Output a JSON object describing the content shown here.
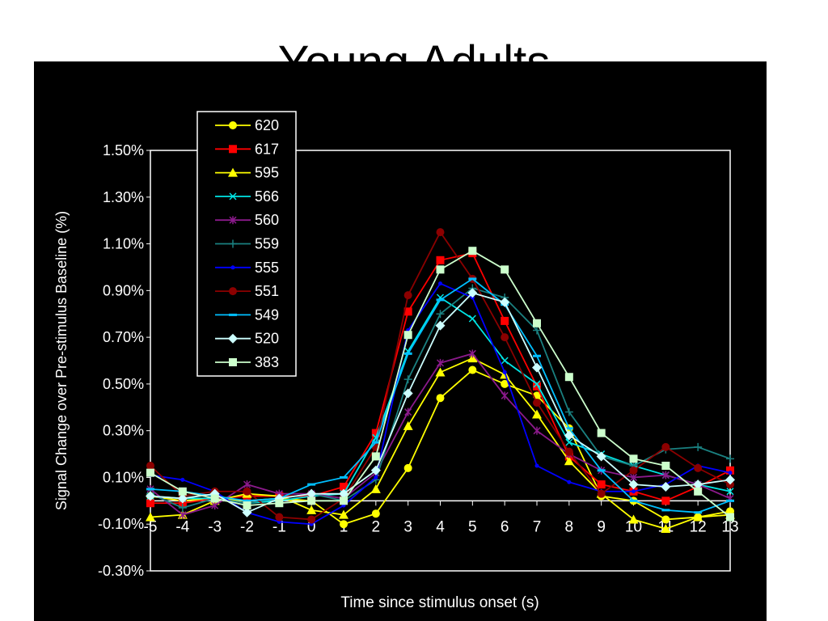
{
  "chart_data": {
    "type": "line",
    "title": "Young Adults",
    "xlabel": "Time since stimulus onset (s)",
    "ylabel": "Signal Change over Pre-stimulus Baseline (%)",
    "x": [
      -5,
      -4,
      -3,
      -2,
      -1,
      0,
      1,
      2,
      3,
      4,
      5,
      6,
      7,
      8,
      9,
      10,
      11,
      12,
      13
    ],
    "ylim": [
      -0.3,
      1.5
    ],
    "yticks": [
      "1.50%",
      "1.30%",
      "1.10%",
      "0.90%",
      "0.70%",
      "0.50%",
      "0.30%",
      "0.10%",
      "-0.10%",
      "-0.30%"
    ],
    "ytick_values": [
      1.5,
      1.3,
      1.1,
      0.9,
      0.7,
      0.5,
      0.3,
      0.1,
      -0.1,
      -0.3
    ],
    "legend_position": "top-left",
    "series": [
      {
        "name": "620",
        "color": "#ffff00",
        "marker": "circle",
        "values": [
          0.02,
          0.0,
          0.01,
          0.0,
          0.01,
          0.0,
          -0.1,
          -0.055,
          0.14,
          0.44,
          0.56,
          0.5,
          0.45,
          0.31,
          0.02,
          0.0,
          -0.08,
          -0.07,
          -0.045
        ]
      },
      {
        "name": "617",
        "color": "#ff0000",
        "marker": "square",
        "values": [
          -0.01,
          -0.01,
          0.01,
          0.02,
          0.02,
          0.02,
          0.06,
          0.29,
          0.81,
          1.03,
          1.06,
          0.77,
          0.49,
          0.19,
          0.07,
          0.04,
          0.0,
          0.06,
          0.13
        ]
      },
      {
        "name": "595",
        "color": "#ffff00",
        "marker": "triangle",
        "values": [
          -0.07,
          -0.06,
          0.0,
          0.03,
          0.02,
          -0.04,
          -0.06,
          0.05,
          0.32,
          0.55,
          0.61,
          0.54,
          0.37,
          0.17,
          0.03,
          -0.08,
          -0.12,
          -0.07,
          -0.06
        ]
      },
      {
        "name": "566",
        "color": "#00e5e5",
        "marker": "x",
        "values": [
          0.02,
          0.01,
          0.01,
          -0.01,
          0.0,
          0.02,
          0.03,
          0.27,
          0.64,
          0.87,
          0.78,
          0.6,
          0.5,
          0.25,
          0.2,
          0.15,
          0.11,
          0.07,
          0.04
        ]
      },
      {
        "name": "560",
        "color": "#8b1a8b",
        "marker": "star",
        "values": [
          0.05,
          -0.06,
          -0.02,
          0.07,
          0.03,
          0.03,
          0.01,
          0.12,
          0.38,
          0.59,
          0.63,
          0.45,
          0.3,
          0.2,
          0.13,
          0.1,
          0.11,
          0.07,
          0.01
        ]
      },
      {
        "name": "559",
        "color": "#1a8080",
        "marker": "plus",
        "values": [
          0.03,
          -0.03,
          0.01,
          -0.01,
          0.01,
          0.03,
          0.0,
          0.09,
          0.52,
          0.8,
          0.91,
          0.87,
          0.73,
          0.38,
          0.19,
          0.15,
          0.22,
          0.23,
          0.18
        ]
      },
      {
        "name": "555",
        "color": "#0000ff",
        "marker": "dot",
        "values": [
          0.11,
          0.09,
          0.04,
          -0.05,
          -0.09,
          -0.1,
          -0.02,
          0.1,
          0.73,
          0.93,
          0.87,
          0.55,
          0.15,
          0.08,
          0.04,
          0.04,
          0.07,
          0.15,
          0.12
        ]
      },
      {
        "name": "551",
        "color": "#8b0000",
        "marker": "circle",
        "values": [
          0.15,
          0.02,
          0.04,
          0.04,
          -0.07,
          -0.08,
          0.01,
          0.23,
          0.88,
          1.15,
          0.95,
          0.7,
          0.42,
          0.21,
          0.03,
          0.13,
          0.23,
          0.14,
          0.07
        ]
      },
      {
        "name": "549",
        "color": "#00bfff",
        "marker": "dash",
        "values": [
          0.05,
          0.04,
          0.02,
          0.0,
          0.01,
          0.07,
          0.1,
          0.25,
          0.63,
          0.86,
          0.95,
          0.84,
          0.62,
          0.31,
          0.13,
          0.0,
          -0.04,
          -0.05,
          0.0
        ]
      },
      {
        "name": "520",
        "color": "#ccffff",
        "marker": "diamond",
        "values": [
          0.02,
          0.01,
          0.03,
          -0.05,
          0.01,
          0.03,
          0.03,
          0.13,
          0.46,
          0.75,
          0.89,
          0.85,
          0.57,
          0.28,
          0.19,
          0.07,
          0.06,
          0.07,
          0.09
        ]
      },
      {
        "name": "383",
        "color": "#ccffcc",
        "marker": "square",
        "values": [
          0.12,
          0.04,
          0.01,
          -0.02,
          -0.01,
          0.0,
          0.0,
          0.19,
          0.71,
          0.99,
          1.07,
          0.99,
          0.76,
          0.53,
          0.29,
          0.18,
          0.15,
          0.04,
          -0.07
        ]
      }
    ]
  }
}
